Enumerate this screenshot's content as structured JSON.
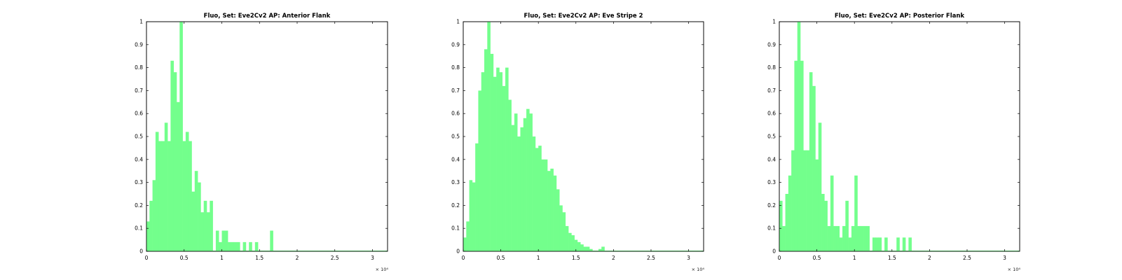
{
  "chart_data": [
    {
      "type": "bar",
      "title": "Fluo, Set: Eve2Cv2 AP: Anterior Flank",
      "x_scale_note": "× 10⁴",
      "x_tick_labels": [
        "0",
        "0.5",
        "1",
        "1.5",
        "2",
        "2.5",
        "3"
      ],
      "y_tick_labels": [
        "0",
        "0.1",
        "0.2",
        "0.3",
        "0.4",
        "0.5",
        "0.6",
        "0.7",
        "0.8",
        "0.9",
        "1"
      ],
      "xlim": [
        0,
        3.2
      ],
      "ylim": [
        0,
        1
      ],
      "bin_width": 0.04,
      "bar_color": "#73ff8c",
      "values": [
        0.13,
        0.22,
        0.31,
        0.52,
        0.48,
        0.48,
        0.56,
        0.48,
        0.83,
        0.78,
        0.65,
        1.0,
        0.48,
        0.52,
        0.48,
        0.26,
        0.35,
        0.3,
        0.17,
        0.22,
        0.17,
        0.22,
        0.0,
        0.09,
        0.04,
        0.09,
        0.09,
        0.04,
        0.04,
        0.04,
        0.04,
        0.0,
        0.04,
        0.0,
        0.04,
        0.0,
        0.04,
        0.0,
        0.0,
        0.0,
        0.0,
        0.09,
        0.0,
        0.0,
        0.0,
        0.0,
        0.0,
        0.0,
        0.0,
        0.0,
        0.0,
        0.0,
        0.0,
        0.0,
        0.0,
        0.0,
        0.0,
        0.0,
        0.0,
        0.0,
        0.0,
        0.0,
        0.0,
        0.0,
        0.0,
        0.0,
        0.0,
        0.0,
        0.0,
        0.0,
        0.0,
        0.0,
        0.0,
        0.0,
        0.0,
        0.0,
        0.0,
        0.0,
        0.0,
        0.0
      ]
    },
    {
      "type": "bar",
      "title": "Fluo, Set: Eve2Cv2 AP: Eve Stripe 2",
      "x_scale_note": "× 10⁴",
      "x_tick_labels": [
        "0",
        "0.5",
        "1",
        "1.5",
        "2",
        "2.5",
        "3"
      ],
      "y_tick_labels": [
        "0",
        "0.1",
        "0.2",
        "0.3",
        "0.4",
        "0.5",
        "0.6",
        "0.7",
        "0.8",
        "0.9",
        "1"
      ],
      "xlim": [
        0,
        3.2
      ],
      "ylim": [
        0,
        1
      ],
      "bin_width": 0.04,
      "bar_color": "#73ff8c",
      "values": [
        0.06,
        0.13,
        0.31,
        0.3,
        0.47,
        0.7,
        0.78,
        0.88,
        1.0,
        0.86,
        0.76,
        0.8,
        0.78,
        0.72,
        0.8,
        0.66,
        0.55,
        0.6,
        0.5,
        0.54,
        0.58,
        0.62,
        0.6,
        0.5,
        0.45,
        0.46,
        0.4,
        0.4,
        0.35,
        0.36,
        0.33,
        0.27,
        0.2,
        0.17,
        0.11,
        0.08,
        0.07,
        0.05,
        0.04,
        0.03,
        0.02,
        0.02,
        0.01,
        0.0,
        0.0,
        0.01,
        0.02,
        0.0,
        0.0,
        0.0,
        0.0,
        0.0,
        0.0,
        0.0,
        0.0,
        0.0,
        0.0,
        0.0,
        0.0,
        0.0,
        0.0,
        0.0,
        0.0,
        0.0,
        0.0,
        0.0,
        0.0,
        0.0,
        0.0,
        0.0,
        0.0,
        0.0,
        0.0,
        0.0,
        0.0,
        0.0,
        0.0,
        0.0,
        0.0,
        0.0
      ]
    },
    {
      "type": "bar",
      "title": "Fluo, Set: Eve2Cv2 AP: Posterior Flank",
      "x_scale_note": "× 10⁴",
      "x_tick_labels": [
        "0",
        "0.5",
        "1",
        "1.5",
        "2",
        "2.5",
        "3"
      ],
      "y_tick_labels": [
        "0",
        "0.1",
        "0.2",
        "0.3",
        "0.4",
        "0.5",
        "0.6",
        "0.7",
        "0.8",
        "0.9",
        "1"
      ],
      "xlim": [
        0,
        3.2
      ],
      "ylim": [
        0,
        1
      ],
      "bin_width": 0.04,
      "bar_color": "#73ff8c",
      "values": [
        0.22,
        0.11,
        0.25,
        0.33,
        0.44,
        0.83,
        1.0,
        0.83,
        0.44,
        0.44,
        0.78,
        0.72,
        0.4,
        0.56,
        0.25,
        0.22,
        0.11,
        0.33,
        0.11,
        0.11,
        0.06,
        0.11,
        0.22,
        0.06,
        0.11,
        0.33,
        0.11,
        0.11,
        0.11,
        0.11,
        0.0,
        0.06,
        0.06,
        0.06,
        0.0,
        0.06,
        0.0,
        0.0,
        0.0,
        0.06,
        0.0,
        0.06,
        0.0,
        0.06,
        0.0,
        0.0,
        0.0,
        0.0,
        0.0,
        0.0,
        0.0,
        0.0,
        0.0,
        0.0,
        0.0,
        0.0,
        0.0,
        0.0,
        0.0,
        0.0,
        0.0,
        0.0,
        0.0,
        0.0,
        0.0,
        0.0,
        0.0,
        0.0,
        0.0,
        0.0,
        0.0,
        0.0,
        0.0,
        0.0,
        0.0,
        0.0,
        0.0,
        0.0,
        0.0,
        0.0
      ]
    }
  ]
}
